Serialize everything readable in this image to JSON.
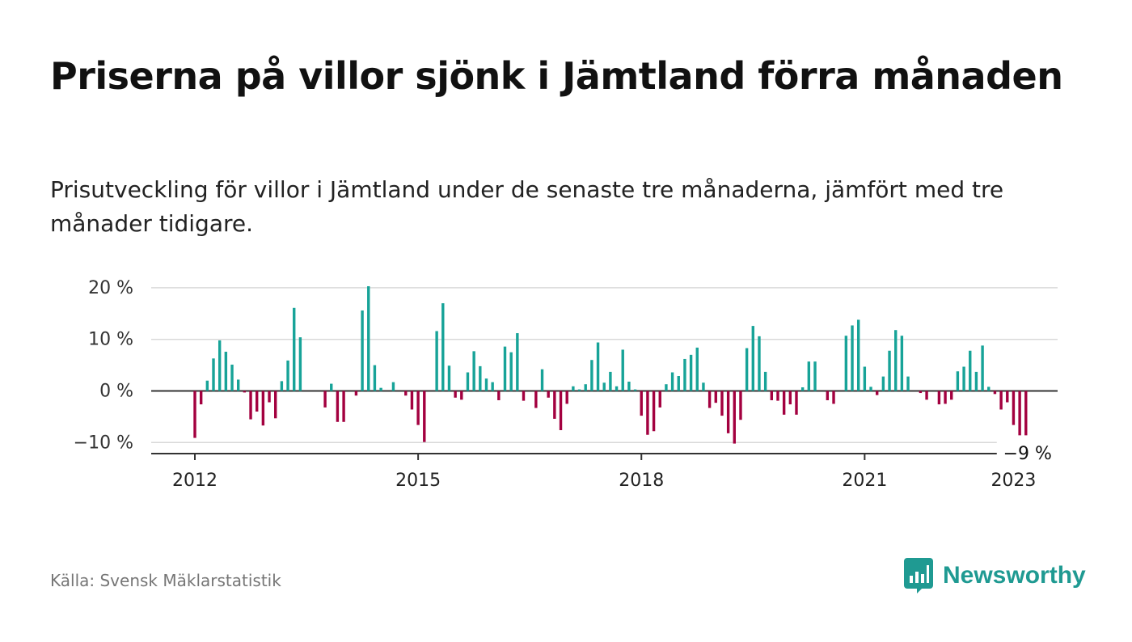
{
  "title": "Priserna på villor sjönk i Jämtland förra månaden",
  "subtitle": "Prisutveckling för villor i Jämtland under de senaste tre månaderna, jämfört med tre månader tidigare.",
  "source": "Källa: Svensk Mäklarstatistik",
  "brand": "Newsworthy",
  "colors": {
    "positive": "#17a398",
    "negative": "#a3003f",
    "grid": "#d9d9d9",
    "axis": "#333333",
    "brand": "#1f9a92"
  },
  "chart_data": {
    "type": "bar",
    "x_start": "2012-01",
    "xlabel": "",
    "ylabel": "",
    "ylim": [
      -12,
      20
    ],
    "yticks": [
      20,
      10,
      0,
      -10
    ],
    "ytick_labels": [
      "20 %",
      "10 %",
      "0 %",
      "−10 %"
    ],
    "xtick_labels": [
      "2012",
      "2015",
      "2018",
      "2021",
      "2023"
    ],
    "xtick_years": [
      2012,
      2015,
      2018,
      2021,
      2023
    ],
    "grid": true,
    "last_value_label": "−9 %",
    "values": [
      -9.1,
      -2.6,
      2.0,
      6.3,
      9.8,
      7.6,
      5.1,
      2.2,
      -0.3,
      -5.5,
      -4.0,
      -6.7,
      -2.2,
      -5.3,
      1.9,
      5.9,
      16.1,
      10.4,
      0,
      0,
      0,
      -3.2,
      1.4,
      -6.0,
      -6.0,
      0,
      -0.9,
      15.6,
      20.3,
      5.0,
      0.6,
      0,
      1.7,
      0,
      -0.9,
      -3.6,
      -6.6,
      -9.9,
      0,
      11.6,
      17.0,
      4.9,
      -1.3,
      -1.7,
      3.6,
      7.7,
      4.8,
      2.4,
      1.7,
      -1.8,
      8.6,
      7.5,
      11.2,
      -1.9,
      0,
      -3.3,
      4.2,
      -1.3,
      -5.4,
      -7.6,
      -2.5,
      0.9,
      0.3,
      1.3,
      6.0,
      9.4,
      1.6,
      3.7,
      0.9,
      8.0,
      1.8,
      0.3,
      -4.8,
      -8.5,
      -7.8,
      -3.2,
      1.3,
      3.6,
      2.9,
      6.2,
      7.0,
      8.4,
      1.6,
      -3.3,
      -2.3,
      -4.8,
      -8.2,
      -10.2,
      -5.6,
      8.3,
      12.6,
      10.6,
      3.7,
      -1.8,
      -1.9,
      -4.6,
      -2.6,
      -4.6,
      0.7,
      5.7,
      5.7,
      0,
      -1.8,
      -2.5,
      0,
      10.7,
      12.7,
      13.8,
      4.7,
      0.8,
      -0.8,
      2.8,
      7.8,
      11.8,
      10.7,
      2.8,
      0,
      -0.4,
      -1.7,
      0,
      -2.6,
      -2.5,
      -1.7,
      3.8,
      4.7,
      7.8,
      3.7,
      8.8,
      0.8,
      -0.6,
      -3.6,
      -2.2,
      -6.6,
      -8.6,
      -8.6
    ]
  }
}
